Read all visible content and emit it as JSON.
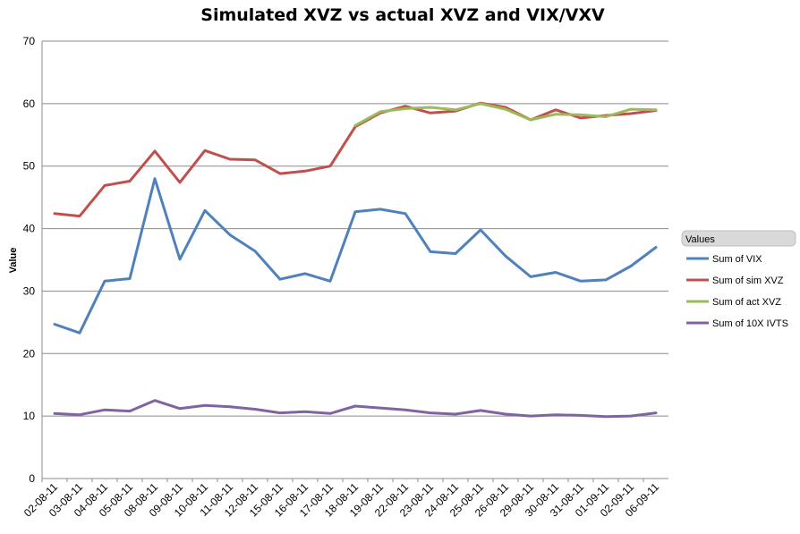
{
  "chart_data": {
    "type": "line",
    "title": "Simulated XVZ vs actual XVZ and VIX/VXV",
    "xlabel": "",
    "ylabel": "Value",
    "ylim": [
      0,
      70
    ],
    "yticks": [
      0,
      10,
      20,
      30,
      40,
      50,
      60,
      70
    ],
    "grid": true,
    "legend_title": "Values",
    "legend_position": "right",
    "categories": [
      "02-08-11",
      "03-08-11",
      "04-08-11",
      "05-08-11",
      "08-08-11",
      "09-08-11",
      "10-08-11",
      "11-08-11",
      "12-08-11",
      "15-08-11",
      "16-08-11",
      "17-08-11",
      "18-08-11",
      "19-08-11",
      "22-08-11",
      "23-08-11",
      "24-08-11",
      "25-08-11",
      "26-08-11",
      "29-08-11",
      "30-08-11",
      "31-08-11",
      "01-09-11",
      "02-09-11",
      "06-09-11"
    ],
    "series": [
      {
        "name": "Sum of VIX",
        "color": "#4f81bd",
        "values": [
          24.7,
          23.3,
          31.6,
          32.0,
          48.0,
          35.1,
          42.9,
          39.0,
          36.4,
          31.9,
          32.8,
          31.6,
          42.7,
          43.1,
          42.4,
          36.3,
          36.0,
          39.8,
          35.6,
          32.3,
          33.0,
          31.6,
          31.8,
          34.0,
          37.0
        ]
      },
      {
        "name": "Sum of sim XVZ",
        "color": "#c0504d",
        "values": [
          42.4,
          42.0,
          46.9,
          47.6,
          52.4,
          47.4,
          52.5,
          51.1,
          51.0,
          48.8,
          49.2,
          50.0,
          56.3,
          58.5,
          59.6,
          58.5,
          58.8,
          60.1,
          59.4,
          57.4,
          59.0,
          57.7,
          58.1,
          58.4,
          58.9
        ]
      },
      {
        "name": "Sum of act XVZ",
        "color": "#9bbb59",
        "start_index": 12,
        "values": [
          null,
          null,
          null,
          null,
          null,
          null,
          null,
          null,
          null,
          null,
          null,
          null,
          56.5,
          58.7,
          59.2,
          59.4,
          59.0,
          60.0,
          59.1,
          57.4,
          58.3,
          58.2,
          57.9,
          59.1,
          59.0
        ]
      },
      {
        "name": "Sum of 10X IVTS",
        "color": "#8064a2",
        "values": [
          10.4,
          10.2,
          11.0,
          10.8,
          12.5,
          11.2,
          11.7,
          11.5,
          11.1,
          10.5,
          10.7,
          10.4,
          11.6,
          11.3,
          11.0,
          10.5,
          10.3,
          10.9,
          10.3,
          10.0,
          10.2,
          10.1,
          9.9,
          10.0,
          10.5
        ]
      }
    ]
  }
}
